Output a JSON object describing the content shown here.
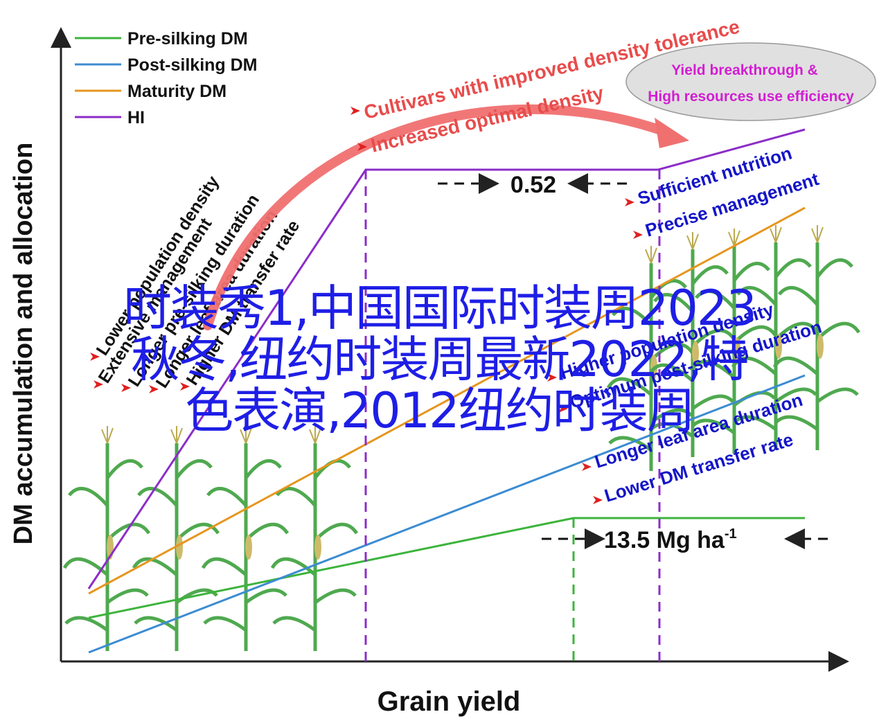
{
  "axes": {
    "ylabel": "DM accumulation and allocation",
    "xlabel": "Grain yield"
  },
  "legend": [
    {
      "label": "Pre-silking DM",
      "color": "#3cb43c"
    },
    {
      "label": "Post-silking DM",
      "color": "#3c8cd2"
    },
    {
      "label": "Maturity DM",
      "color": "#e6961e"
    },
    {
      "label": "HI",
      "color": "#8c2dc8"
    }
  ],
  "left_labels": [
    "Lower population density",
    "Extensive management",
    "Longer pre-silking duration",
    "Longer leaf area duration",
    "Higher DM transfer rate"
  ],
  "arrow_labels": {
    "top": "Cultivars with improved density tolerance",
    "bottom": "Increased optimal density"
  },
  "ellipse": {
    "line1": "Yield breakthrough &",
    "line2": "High resources use efficiency"
  },
  "hi_gap": "0.52",
  "yield_gap": {
    "value": "13.5 Mg ha",
    "superscript": "-1"
  },
  "right_labels_upper": [
    "Sufficient nutrition",
    "Precise management"
  ],
  "right_labels_lower": [
    "Higher population density",
    "Optimum post-silking duration",
    "Longer leaf area duration",
    "Lower DM transfer rate"
  ],
  "overlay_text": "时装秀1,中国国际时装周2023\n秋冬,纽约时装周最新2022,特\n色表演,2012纽约时装周",
  "colors": {
    "axis": "#222222",
    "arrow": "#f07070",
    "right_labels": "#1414c8",
    "top_labels": "#e84c4c",
    "ellipse_text": "#d21ed2",
    "overlay": "#1e1ee6",
    "maize": "#3ca03c"
  }
}
